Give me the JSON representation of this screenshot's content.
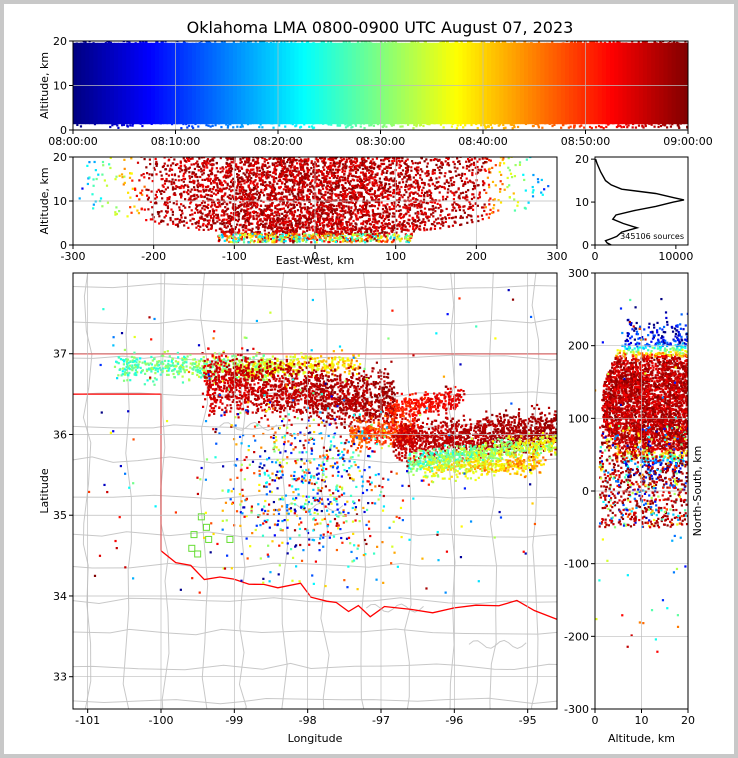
{
  "figure": {
    "title": "Oklahoma LMA 0800-0900 UTC August 07, 2023",
    "source_count_label": "345106 sources"
  },
  "chart_data": [
    {
      "id": "time-height",
      "type": "scatter",
      "title": "",
      "xlabel": "",
      "ylabel": "Altitude, km",
      "xticks": [
        "08:00:00",
        "08:10:00",
        "08:20:00",
        "08:30:00",
        "08:40:00",
        "08:50:00",
        "09:00:00"
      ],
      "xlim_minutes": [
        0,
        60
      ],
      "ylim": [
        0,
        20
      ],
      "yticks": [
        0,
        10,
        20
      ],
      "grid": true,
      "colormap": "jet",
      "color_encodes": "time"
    },
    {
      "id": "ew-height",
      "type": "scatter",
      "xlabel": "East-West, km",
      "ylabel": "Altitude, km",
      "xlim": [
        -300,
        300
      ],
      "xticks": [
        -300,
        -200,
        -100,
        0,
        100,
        200,
        300
      ],
      "ylim": [
        0,
        20
      ],
      "yticks": [
        0,
        10,
        20
      ],
      "grid": true,
      "source_extent_x": [
        -290,
        290
      ]
    },
    {
      "id": "altitude-histogram",
      "type": "line",
      "xlim": [
        0,
        11500
      ],
      "xticks": [
        0,
        10000
      ],
      "ylim": [
        0,
        20.5
      ],
      "yticks": [
        0,
        10,
        20
      ],
      "profile": [
        [
          0,
          2000
        ],
        [
          0.5,
          1500
        ],
        [
          1,
          1300
        ],
        [
          1.5,
          2000
        ],
        [
          2,
          2700
        ],
        [
          3,
          3300
        ],
        [
          4,
          5200
        ],
        [
          5,
          3500
        ],
        [
          6,
          2200
        ],
        [
          7,
          2600
        ],
        [
          8,
          4800
        ],
        [
          9,
          7500
        ],
        [
          10,
          9700
        ],
        [
          10.5,
          11000
        ],
        [
          11,
          9800
        ],
        [
          12,
          7500
        ],
        [
          13,
          3300
        ],
        [
          14,
          2000
        ],
        [
          15,
          1300
        ],
        [
          17,
          700
        ],
        [
          19,
          250
        ],
        [
          20,
          80
        ]
      ]
    },
    {
      "id": "plan-view",
      "type": "scatter",
      "xlabel": "Longitude",
      "ylabel": "Latitude",
      "xlim": [
        -101.2,
        -94.6
      ],
      "xticks": [
        -101,
        -100,
        -99,
        -98,
        -97,
        -96,
        -95
      ],
      "ylim": [
        32.6,
        38.0
      ],
      "yticks": [
        33,
        34,
        35,
        36,
        37
      ],
      "grid": true,
      "state_border_color": "#ff0000",
      "county_line_color": "#c8c8c8",
      "station_color": "#66dd33",
      "stations": [
        [
          -99.45,
          34.98
        ],
        [
          -99.38,
          34.85
        ],
        [
          -99.55,
          34.76
        ],
        [
          -99.35,
          34.7
        ],
        [
          -99.06,
          34.7
        ],
        [
          -99.58,
          34.59
        ],
        [
          -99.5,
          34.52
        ]
      ]
    },
    {
      "id": "ns-height",
      "type": "scatter",
      "xlabel": "Altitude, km",
      "ylabel": "North-South, km",
      "xlim": [
        0,
        20
      ],
      "xticks": [
        0,
        10,
        20
      ],
      "ylim": [
        -300,
        300
      ],
      "yticks": [
        -300,
        -200,
        -100,
        0,
        100,
        200,
        300
      ],
      "grid": true
    }
  ]
}
